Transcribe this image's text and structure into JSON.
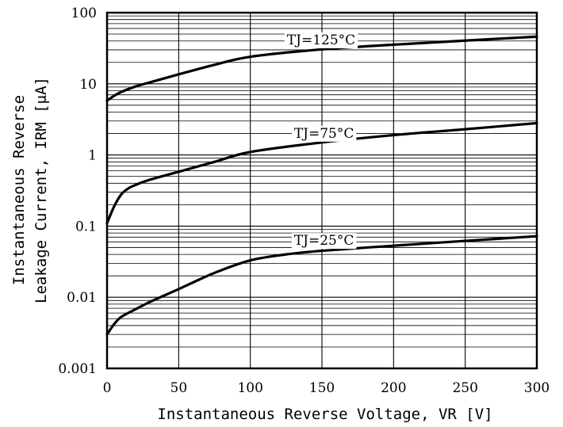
{
  "chart_data": {
    "type": "line",
    "title": "",
    "xlabel": "Instantaneous Reverse Voltage, VR [V]",
    "ylabel_line1": "Instantaneous Reverse",
    "ylabel_line2": "Leakage Current, IRM [μA]",
    "x_scale": "linear",
    "y_scale": "log",
    "xlim": [
      0,
      300
    ],
    "ylim": [
      0.001,
      100
    ],
    "x_ticks": [
      0,
      50,
      100,
      150,
      200,
      250,
      300
    ],
    "x_tick_labels": [
      "0",
      "50",
      "100",
      "150",
      "200",
      "250",
      "300"
    ],
    "y_ticks": [
      0.001,
      0.01,
      0.1,
      1,
      10,
      100
    ],
    "y_tick_labels": [
      "0.001",
      "0.01",
      "0.1",
      "1",
      "10",
      "100"
    ],
    "grid": true,
    "series": [
      {
        "name": "TJ=125°C",
        "x": [
          0,
          5,
          10,
          20,
          30,
          50,
          75,
          100,
          150,
          200,
          250,
          300
        ],
        "y": [
          5.8,
          6.8,
          7.7,
          9.2,
          10.5,
          13.6,
          18.5,
          24,
          30.5,
          35.5,
          40.5,
          46
        ]
      },
      {
        "name": "TJ=75°C",
        "x": [
          0,
          5,
          10,
          15,
          20,
          30,
          50,
          75,
          100,
          150,
          200,
          250,
          300
        ],
        "y": [
          0.11,
          0.19,
          0.28,
          0.34,
          0.38,
          0.45,
          0.58,
          0.8,
          1.1,
          1.5,
          1.9,
          2.3,
          2.8
        ]
      },
      {
        "name": "TJ=25°C",
        "x": [
          0,
          5,
          10,
          20,
          30,
          50,
          75,
          100,
          125,
          150,
          200,
          250,
          300
        ],
        "y": [
          0.003,
          0.0042,
          0.0053,
          0.0068,
          0.0086,
          0.013,
          0.022,
          0.033,
          0.04,
          0.045,
          0.053,
          0.062,
          0.072
        ]
      }
    ]
  }
}
